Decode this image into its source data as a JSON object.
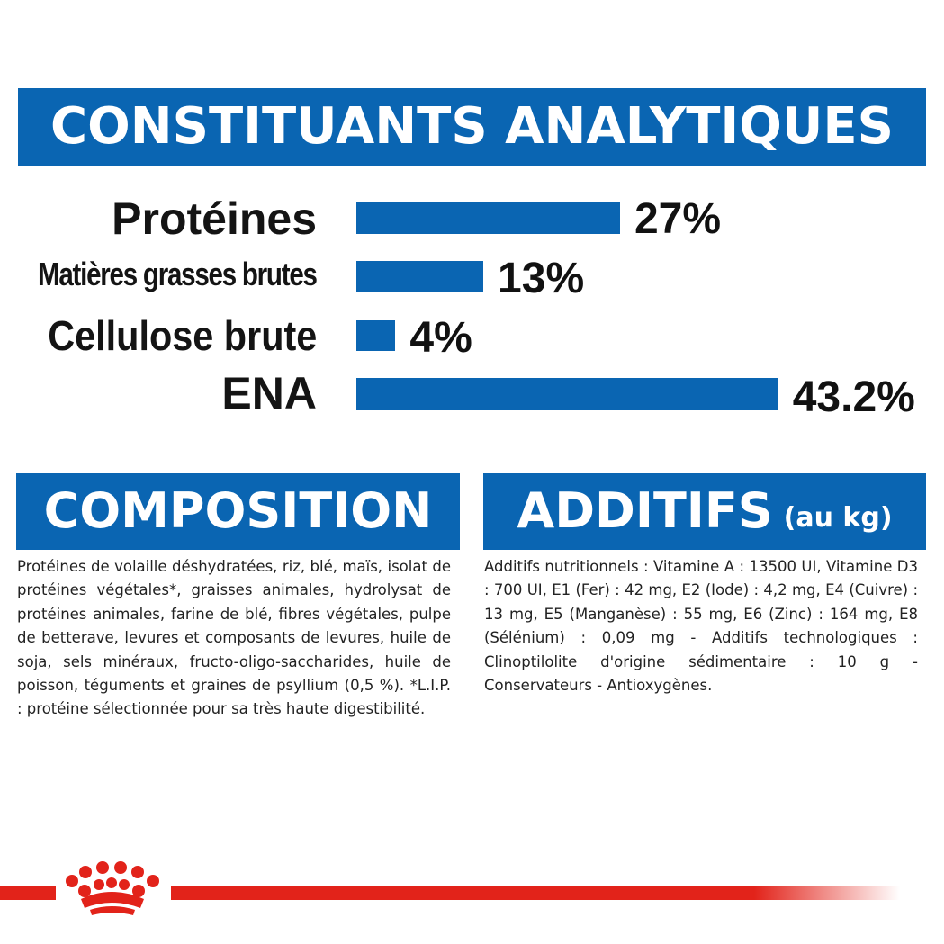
{
  "analytical": {
    "title": "CONSTITUANTS ANALYTIQUES",
    "rows": [
      {
        "label": "Protéines",
        "value_text": "27%",
        "value": 27
      },
      {
        "label": "Matières grasses brutes",
        "value_text": "13%",
        "value": 13
      },
      {
        "label": "Cellulose brute",
        "value_text": "4%",
        "value": 4
      },
      {
        "label": "ENA",
        "value_text": "43.2%",
        "value": 43.2
      }
    ]
  },
  "composition": {
    "title": "COMPOSITION",
    "text": "Protéines de volaille déshydratées, riz, blé, maïs, isolat de protéines végétales*, graisses animales, hydrolysat de protéines animales, farine de blé, fibres végétales, pulpe de betterave, levures et composants de levures, huile de soja, sels minéraux, fructo-oligo-saccharides, huile de poisson, téguments et graines de psyllium (0,5 %). *L.I.P. : protéine sélectionnée pour sa très haute digestibilité."
  },
  "additives": {
    "title": "ADDITIFS",
    "subtitle": "(au kg)",
    "text": "Additifs nutritionnels : Vitamine A : 13500 UI, Vitamine D3 : 700 UI, E1 (Fer) : 42 mg, E2 (Iode) : 4,2 mg, E4 (Cuivre) : 13 mg, E5 (Manganèse) : 55 mg, E6 (Zinc) : 164 mg, E8 (Sélénium) : 0,09 mg - Additifs technologiques : Clinoptilolite d'origine sédimentaire : 10 g - Conservateurs - Antioxygènes."
  },
  "footer": {
    "logo_icon": "crown-icon"
  },
  "colors": {
    "brand_blue": "#0a65b2",
    "brand_red": "#e2231a",
    "text": "#111111"
  }
}
